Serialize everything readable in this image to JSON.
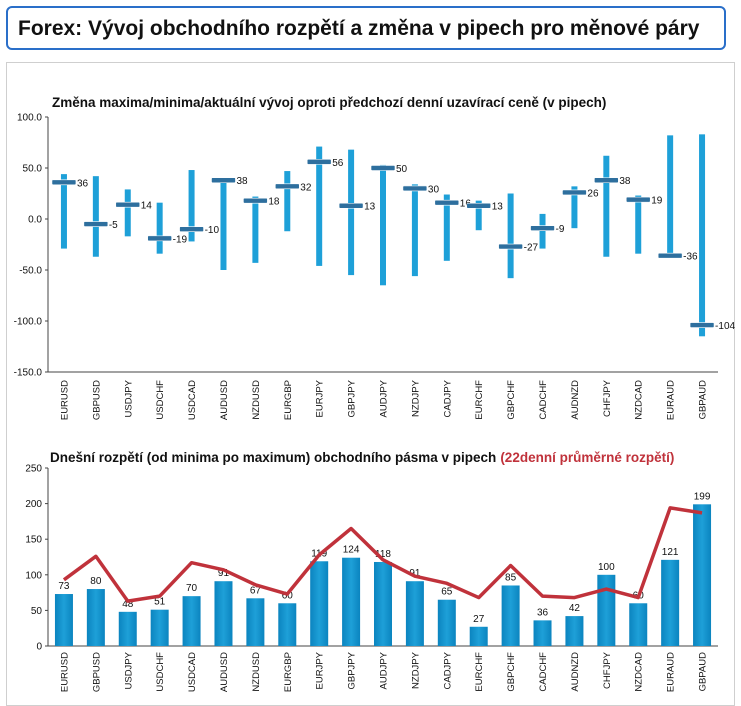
{
  "header": {
    "title": "Forex: Vývoj obchodního rozpětí a změna v pipech pro měnové páry"
  },
  "chart_data": [
    {
      "type": "range",
      "title": "Změna maxima/minima/aktuální vývoj oproti předchozí denní uzavírací ceně (v pipech)",
      "ylim": [
        -150,
        100
      ],
      "yticks": [
        "100.0",
        "50.0",
        "0.0",
        "-50.0",
        "-100.0",
        "-150.0"
      ],
      "ytick_values": [
        100,
        50,
        0,
        -50,
        -100,
        -150
      ],
      "grid": false,
      "categories": [
        "EURUSD",
        "GBPUSD",
        "USDJPY",
        "USDCHF",
        "USDCAD",
        "AUDUSD",
        "NZDUSD",
        "EURGBP",
        "EURJPY",
        "GBPJPY",
        "AUDJPY",
        "NZDJPY",
        "CADJPY",
        "EURCHF",
        "GBPCHF",
        "CADCHF",
        "AUDNZD",
        "CHFJPY",
        "NZDCAD",
        "EURAUD",
        "GBPAUD"
      ],
      "high": [
        44,
        42,
        29,
        16,
        48,
        39,
        22,
        47,
        71,
        68,
        53,
        34,
        24,
        18,
        25,
        5,
        32,
        62,
        23,
        82,
        83
      ],
      "low": [
        -29,
        -37,
        -17,
        -34,
        -22,
        -50,
        -43,
        -12,
        -46,
        -55,
        -65,
        -56,
        -41,
        -11,
        -58,
        -29,
        -9,
        -37,
        -34,
        -35,
        -115
      ],
      "current": [
        36,
        -5,
        14,
        -19,
        -10,
        38,
        18,
        32,
        56,
        13,
        50,
        30,
        16,
        13,
        -27,
        -9,
        26,
        38,
        19,
        -36,
        -104
      ],
      "labels": [
        "36",
        "-5",
        "14",
        "-19",
        "-10",
        "38",
        "18",
        "32",
        "56",
        "13",
        "50",
        "30",
        "16",
        "13",
        "-27",
        "-9",
        "26",
        "38",
        "19",
        "-36",
        "-104"
      ],
      "colors": {
        "bar": "#1ea0d8",
        "marker": "#2e6f9e"
      }
    },
    {
      "type": "bar",
      "title": "Dnešní rozpětí (od minima po maximum) obchodního pásma v pipech",
      "title_extra": "(22denní průměrné rozpětí)",
      "ylim": [
        0,
        250
      ],
      "yticks": [
        "250",
        "200",
        "150",
        "100",
        "50",
        "0"
      ],
      "ytick_values": [
        250,
        200,
        150,
        100,
        50,
        0
      ],
      "grid": false,
      "categories": [
        "EURUSD",
        "GBPUSD",
        "USDJPY",
        "USDCHF",
        "USDCAD",
        "AUDUSD",
        "NZDUSD",
        "EURGBP",
        "EURJPY",
        "GBPJPY",
        "AUDJPY",
        "NZDJPY",
        "CADJPY",
        "EURCHF",
        "GBPCHF",
        "CADCHF",
        "AUDNZD",
        "CHFJPY",
        "NZDCAD",
        "EURAUD",
        "GBPAUD"
      ],
      "series": [
        {
          "values": [
            73,
            80,
            48,
            51,
            70,
            91,
            67,
            60,
            119,
            124,
            118,
            91,
            65,
            27,
            85,
            36,
            42,
            100,
            60,
            121,
            199
          ]
        },
        {
          "values": [
            93,
            126,
            63,
            70,
            117,
            107,
            86,
            73,
            128,
            165,
            121,
            98,
            88,
            68,
            113,
            70,
            68,
            80,
            68,
            194,
            187
          ]
        }
      ],
      "labels": [
        "73",
        "80",
        "48",
        "51",
        "70",
        "91",
        "67",
        "60",
        "119",
        "124",
        "118",
        "91",
        "65",
        "27",
        "85",
        "36",
        "42",
        "100",
        "60",
        "121",
        "199"
      ],
      "colors": {
        "bar": "#1ea0d8",
        "line": "#c0323b"
      }
    }
  ]
}
